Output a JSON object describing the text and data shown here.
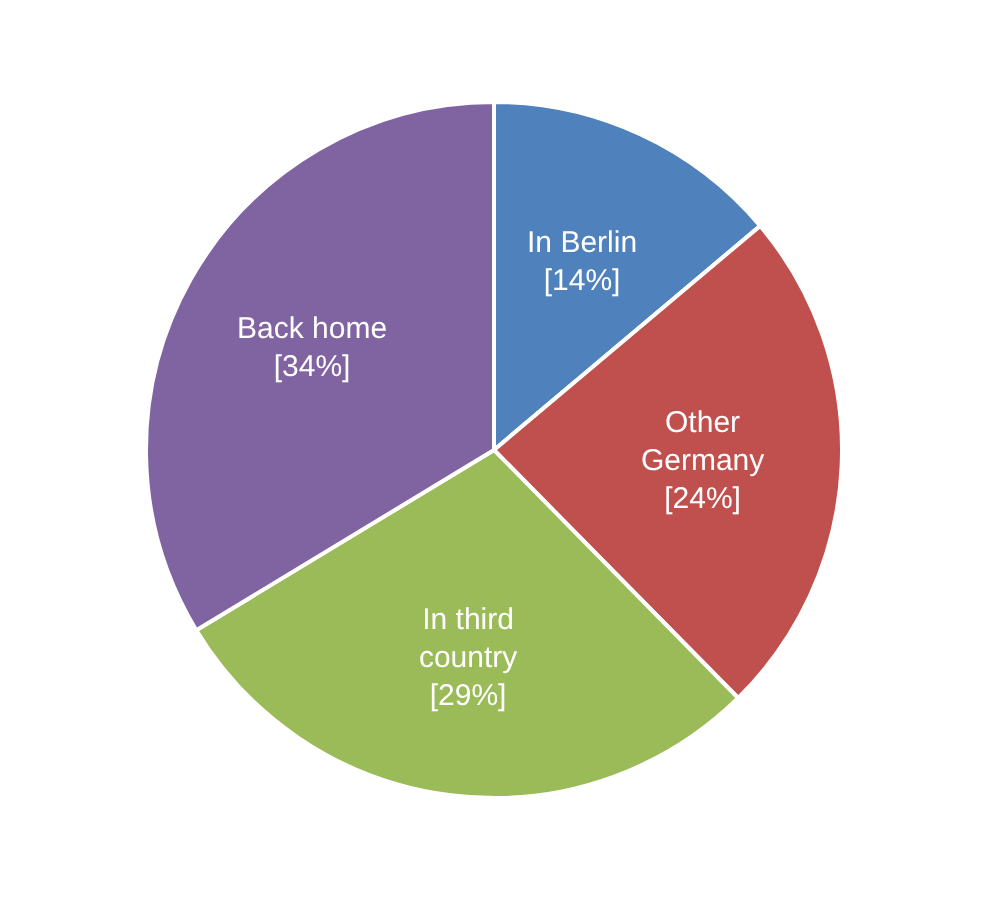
{
  "chart_data": {
    "type": "pie",
    "categories": [
      "In Berlin",
      "Other Germany",
      "In third country",
      "Back home"
    ],
    "values": [
      14,
      24,
      29,
      34
    ],
    "colors": [
      "#4f81bd",
      "#c0504d",
      "#9bbb59",
      "#8064a2"
    ],
    "value_labels": [
      "[14%]",
      "[24%]",
      "[29%]",
      "[34%]"
    ],
    "legend": false
  }
}
